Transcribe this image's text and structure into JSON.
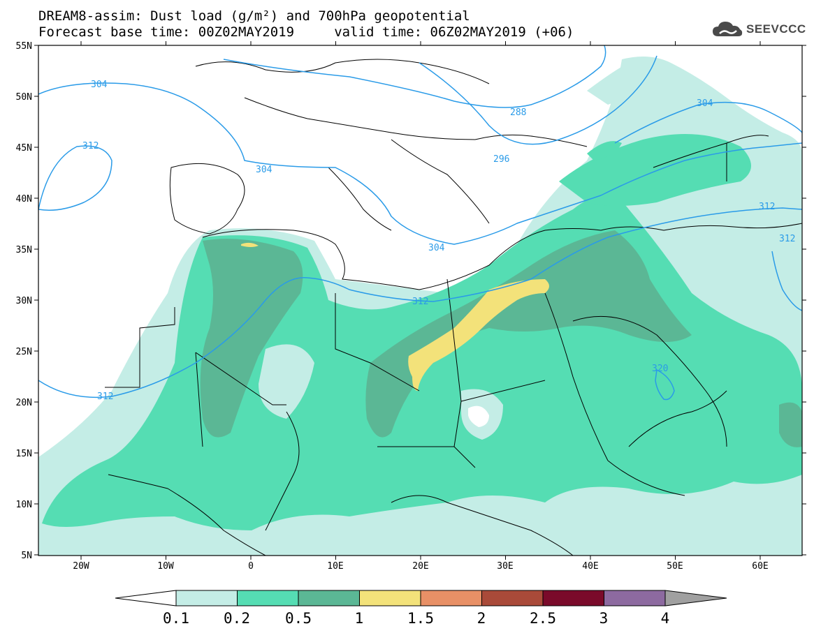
{
  "header": {
    "title_line1": "DREAM8-assim: Dust load (g/m²) and 700hPa geopotential",
    "title_line2": "Forecast base time: 00Z02MAY2019     valid time: 06Z02MAY2019 (+06)",
    "logo_text": "SEEVCCC",
    "logo_icon": "cloud-icon"
  },
  "map": {
    "lon_ticks": [
      "20W",
      "10W",
      "0",
      "10E",
      "20E",
      "30E",
      "40E",
      "50E",
      "60E"
    ],
    "lat_ticks": [
      "55N",
      "50N",
      "45N",
      "40N",
      "35N",
      "30N",
      "25N",
      "20N",
      "15N",
      "10N",
      "5N"
    ],
    "contour_labels": [
      "304",
      "288",
      "304",
      "312",
      "304",
      "296",
      "312",
      "304",
      "312",
      "312",
      "312",
      "320"
    ]
  },
  "colorbar": {
    "ticks": [
      "0.1",
      "0.2",
      "0.5",
      "1",
      "1.5",
      "2",
      "2.5",
      "3",
      "4"
    ],
    "colors": [
      "#ffffff",
      "#c4ede6",
      "#55ddb3",
      "#5bb795",
      "#f3e27a",
      "#e89066",
      "#a94a39",
      "#7a0a2a",
      "#8d6aa0",
      "#a0a0a0"
    ]
  },
  "colors": {
    "dust_light": "#c4ede6",
    "dust_mid": "#55ddb3",
    "dust_dark": "#5bb795",
    "dust_yellow": "#f3e27a",
    "contour": "#2a9be8",
    "border": "#000000"
  }
}
